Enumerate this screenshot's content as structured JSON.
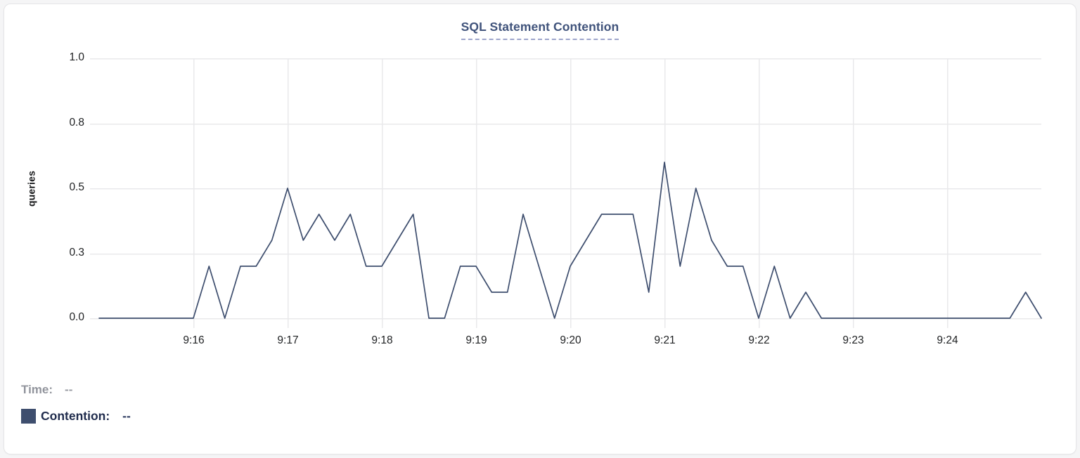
{
  "header": {
    "title": "SQL Statement Contention"
  },
  "legend": {
    "time_label": "Time:",
    "time_value": "--",
    "contention_label": "Contention:",
    "contention_value": "--",
    "swatch_color": "#3e4e6e"
  },
  "colors": {
    "line": "#3e4e6e",
    "grid": "#e9e9eb",
    "title": "#40537b",
    "title_underline": "#9da5cb",
    "axis_text": "#1e2022",
    "time_label_text": "#91949c",
    "contention_label_text": "#1f2b4c"
  },
  "chart_data": {
    "type": "line",
    "title": "SQL Statement Contention",
    "xlabel": "",
    "ylabel": "queries",
    "ylim": [
      0,
      1.0
    ],
    "grid": true,
    "legend_position": "bottom-left",
    "x_start": "9:15:00",
    "x_end": "9:25:00",
    "point_interval_seconds": 10,
    "x_tick_labels": [
      "9:16",
      "9:17",
      "9:18",
      "9:19",
      "9:20",
      "9:21",
      "9:22",
      "9:23",
      "9:24"
    ],
    "x_tick_first_offset_minutes": 1,
    "y_ticks": [
      {
        "value": 0.0,
        "label": "0.0"
      },
      {
        "value": 0.25,
        "label": "0.3"
      },
      {
        "value": 0.5,
        "label": "0.5"
      },
      {
        "value": 0.75,
        "label": "0.8"
      },
      {
        "value": 1.0,
        "label": "1.0"
      }
    ],
    "series": [
      {
        "name": "Contention",
        "color": "#3e4e6e",
        "values": [
          0,
          0,
          0,
          0,
          0,
          0,
          0,
          0.2,
          0,
          0.2,
          0.2,
          0.3,
          0.5,
          0.3,
          0.4,
          0.3,
          0.4,
          0.2,
          0.2,
          0.3,
          0.4,
          0,
          0,
          0.2,
          0.2,
          0.1,
          0.1,
          0.4,
          0.2,
          0,
          0.2,
          0.3,
          0.4,
          0.4,
          0.4,
          0.1,
          0.6,
          0.2,
          0.5,
          0.3,
          0.2,
          0.2,
          0,
          0.2,
          0,
          0.1,
          0,
          0,
          0,
          0,
          0,
          0,
          0,
          0,
          0,
          0,
          0,
          0,
          0,
          0.1,
          0
        ]
      }
    ]
  }
}
